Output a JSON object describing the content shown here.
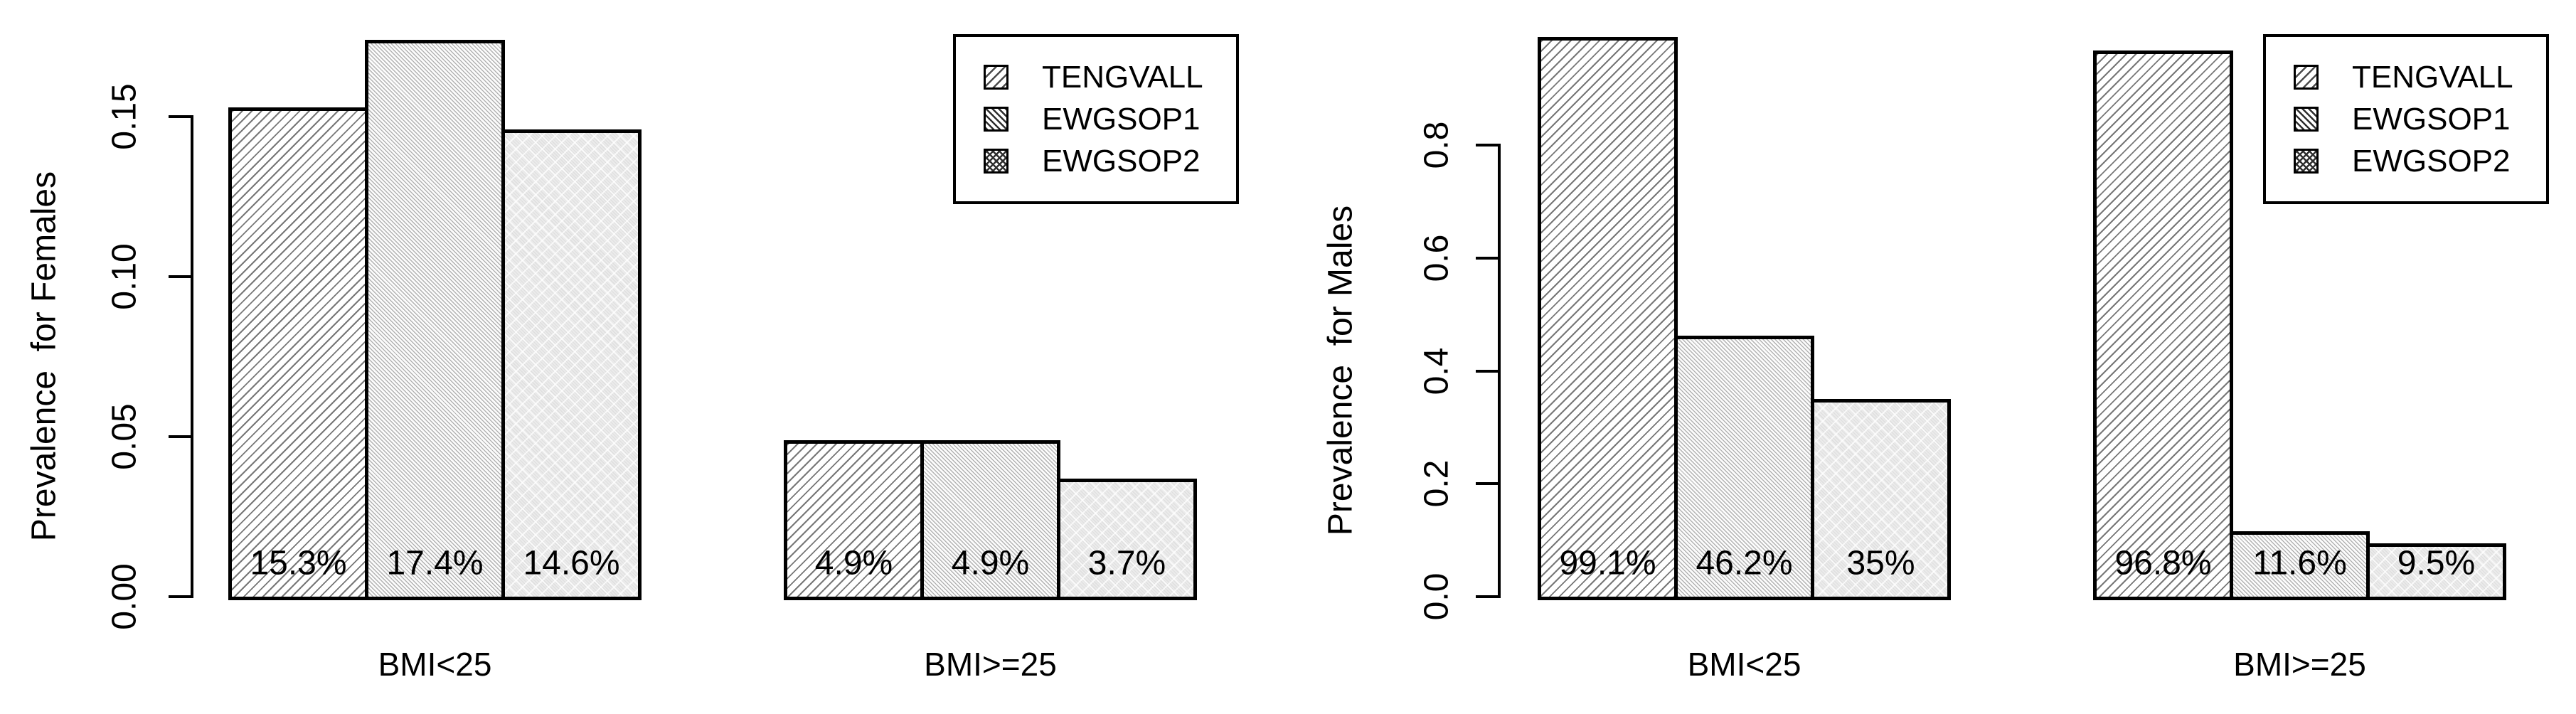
{
  "figure": {
    "background": "#ffffff",
    "text_color": "#000000",
    "line_color": "#000000"
  },
  "chart_data": [
    {
      "type": "bar",
      "panel": "females",
      "title": "",
      "xlabel": "",
      "ylabel": "Prevalence  for Females",
      "categories": [
        "BMI<25",
        "BMI>=25"
      ],
      "series": [
        {
          "name": "TENGVALL",
          "values": [
            0.153,
            0.049
          ],
          "bar_labels": [
            "15.3%",
            "4.9%"
          ]
        },
        {
          "name": "EWGSOP1",
          "values": [
            0.174,
            0.049
          ],
          "bar_labels": [
            "17.4%",
            "4.9%"
          ]
        },
        {
          "name": "EWGSOP2",
          "values": [
            0.146,
            0.037
          ],
          "bar_labels": [
            "14.6%",
            "3.7%"
          ]
        }
      ],
      "yticks": [
        0,
        0.05,
        0.1,
        0.15
      ],
      "ytick_labels": [
        "0.00",
        "0.05",
        "0.10",
        "0.15"
      ],
      "ylim": [
        0,
        0.186
      ],
      "grid": false,
      "legend": {
        "position": "topright",
        "entries": [
          "TENGVALL",
          "EWGSOP1",
          "EWGSOP2"
        ]
      }
    },
    {
      "type": "bar",
      "panel": "males",
      "title": "",
      "xlabel": "",
      "ylabel": "Prevalence  for Males",
      "categories": [
        "BMI<25",
        "BMI>=25"
      ],
      "series": [
        {
          "name": "TENGVALL",
          "values": [
            0.991,
            0.968
          ],
          "bar_labels": [
            "99.1%",
            "96.8%"
          ]
        },
        {
          "name": "EWGSOP1",
          "values": [
            0.462,
            0.116
          ],
          "bar_labels": [
            "46.2%",
            "11.6%"
          ]
        },
        {
          "name": "EWGSOP2",
          "values": [
            0.35,
            0.095
          ],
          "bar_labels": [
            "35%",
            "9.5%"
          ]
        }
      ],
      "yticks": [
        0,
        0.2,
        0.4,
        0.6,
        0.8
      ],
      "ytick_labels": [
        "0.0",
        "0.2",
        "0.4",
        "0.6",
        "0.8"
      ],
      "ylim": [
        0,
        0.999
      ],
      "grid": false,
      "legend": {
        "position": "topright",
        "entries": [
          "TENGVALL",
          "EWGSOP1",
          "EWGSOP2"
        ]
      }
    }
  ]
}
